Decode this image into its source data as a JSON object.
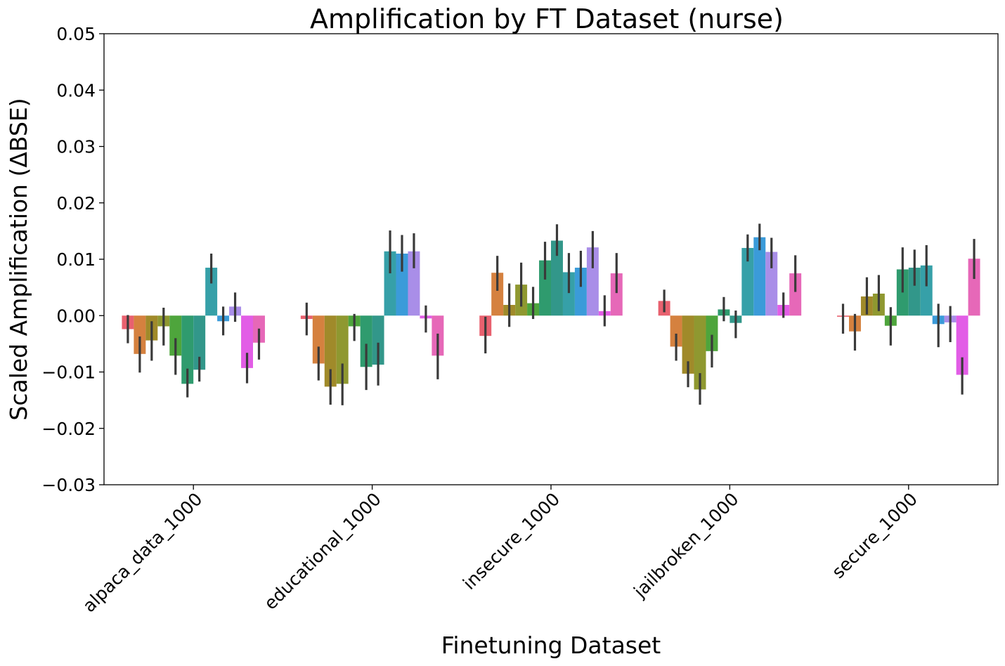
{
  "chart_data": {
    "type": "bar",
    "title": "Amplification by FT Dataset (nurse)",
    "xlabel": "Finetuning Dataset",
    "ylabel": "Scaled Amplification (ΔBSE)",
    "ylim": [
      -0.03,
      0.05
    ],
    "yticks": [
      -0.03,
      -0.02,
      -0.01,
      0.0,
      0.01,
      0.02,
      0.03,
      0.04,
      0.05
    ],
    "ytick_labels": [
      "−0.03",
      "−0.02",
      "−0.01",
      "0.00",
      "0.01",
      "0.02",
      "0.03",
      "0.04",
      "0.05"
    ],
    "categories": [
      "alpaca_data_1000",
      "educational_1000",
      "insecure_1000",
      "jailbroken_1000",
      "secure_1000"
    ],
    "legend": "none",
    "grid": false,
    "series_colors": [
      "#e8616f",
      "#d5813f",
      "#a08a2a",
      "#8f9830",
      "#4ea53c",
      "#2f9b6e",
      "#32978a",
      "#36a0a8",
      "#3b9bd9",
      "#a98ee8",
      "#e25de6",
      "#e668b8"
    ],
    "series": [
      {
        "values": [
          -0.0024,
          -0.0006,
          -0.0036,
          0.0026,
          -0.0002
        ],
        "ci": [
          [
            -0.0049,
            0.0001
          ],
          [
            -0.0035,
            0.0023
          ],
          [
            -0.0067,
            -0.0002
          ],
          [
            0.0006,
            0.0046
          ],
          [
            -0.0032,
            0.0021
          ]
        ]
      },
      {
        "values": [
          -0.0068,
          -0.0085,
          0.0076,
          -0.0055,
          -0.0028
        ],
        "ci": [
          [
            -0.0101,
            -0.0037
          ],
          [
            -0.0115,
            -0.0055
          ],
          [
            0.0044,
            0.0106
          ],
          [
            -0.008,
            -0.0032
          ],
          [
            -0.0062,
            0.0003
          ]
        ]
      },
      {
        "values": [
          -0.0044,
          -0.0126,
          0.0019,
          -0.0103,
          0.0034
        ],
        "ci": [
          [
            -0.008,
            -0.001
          ],
          [
            -0.0158,
            -0.0095
          ],
          [
            -0.002,
            0.0057
          ],
          [
            -0.0127,
            -0.0081
          ],
          [
            0.0002,
            0.0068
          ]
        ]
      },
      {
        "values": [
          -0.0019,
          -0.0121,
          0.0055,
          -0.0131,
          0.0039
        ],
        "ci": [
          [
            -0.0053,
            0.0014
          ],
          [
            -0.0159,
            -0.0085
          ],
          [
            0.0016,
            0.0094
          ],
          [
            -0.0158,
            -0.0102
          ],
          [
            0.0008,
            0.0072
          ]
        ]
      },
      {
        "values": [
          -0.0071,
          -0.0019,
          0.0022,
          -0.0063,
          -0.0018
        ],
        "ci": [
          [
            -0.0105,
            -0.004
          ],
          [
            -0.0045,
            0.0003
          ],
          [
            -0.0006,
            0.0051
          ],
          [
            -0.0092,
            -0.0034
          ],
          [
            -0.0053,
            0.0015
          ]
        ]
      },
      {
        "values": [
          -0.0121,
          -0.0091,
          0.0098,
          0.0011,
          0.0082
        ],
        "ci": [
          [
            -0.0145,
            -0.0094
          ],
          [
            -0.0132,
            -0.005
          ],
          [
            0.0064,
            0.0131
          ],
          [
            -0.001,
            0.0033
          ],
          [
            0.0041,
            0.0121
          ]
        ]
      },
      {
        "values": [
          -0.0096,
          -0.0087,
          0.0133,
          -0.0013,
          0.0085
        ],
        "ci": [
          [
            -0.0117,
            -0.0073
          ],
          [
            -0.0124,
            -0.0048
          ],
          [
            0.0106,
            0.0162
          ],
          [
            -0.004,
            0.0009
          ],
          [
            0.0053,
            0.0117
          ]
        ]
      },
      {
        "values": [
          0.0085,
          0.0114,
          0.0077,
          0.012,
          0.0089
        ],
        "ci": [
          [
            0.0057,
            0.011
          ],
          [
            0.0075,
            0.0151
          ],
          [
            0.004,
            0.0111
          ],
          [
            0.0096,
            0.0144
          ],
          [
            0.0052,
            0.0125
          ]
        ]
      },
      {
        "values": [
          -0.001,
          0.011,
          0.0085,
          0.0139,
          -0.0015
        ],
        "ci": [
          [
            -0.0035,
            0.0016
          ],
          [
            0.0078,
            0.0143
          ],
          [
            0.0051,
            0.0115
          ],
          [
            0.0116,
            0.0163
          ],
          [
            -0.0056,
            0.0021
          ]
        ]
      },
      {
        "values": [
          0.0016,
          0.0114,
          0.0121,
          0.0113,
          -0.0012
        ],
        "ci": [
          [
            -0.0011,
            0.0041
          ],
          [
            0.0084,
            0.0146
          ],
          [
            0.0084,
            0.015
          ],
          [
            0.0084,
            0.0138
          ],
          [
            -0.0047,
            0.0017
          ]
        ]
      },
      {
        "values": [
          -0.0093,
          -0.0005,
          0.0008,
          0.0019,
          -0.0105
        ],
        "ci": [
          [
            -0.012,
            -0.0066
          ],
          [
            -0.003,
            0.0018
          ],
          [
            -0.0019,
            0.0036
          ],
          [
            -0.0004,
            0.0041
          ],
          [
            -0.014,
            -0.0074
          ]
        ]
      },
      {
        "values": [
          -0.0048,
          -0.0071,
          0.0075,
          0.0075,
          0.0101
        ],
        "ci": [
          [
            -0.0078,
            -0.0023
          ],
          [
            -0.0113,
            -0.0032
          ],
          [
            0.004,
            0.0111
          ],
          [
            0.0042,
            0.0107
          ],
          [
            0.0065,
            0.0136
          ]
        ]
      }
    ]
  }
}
